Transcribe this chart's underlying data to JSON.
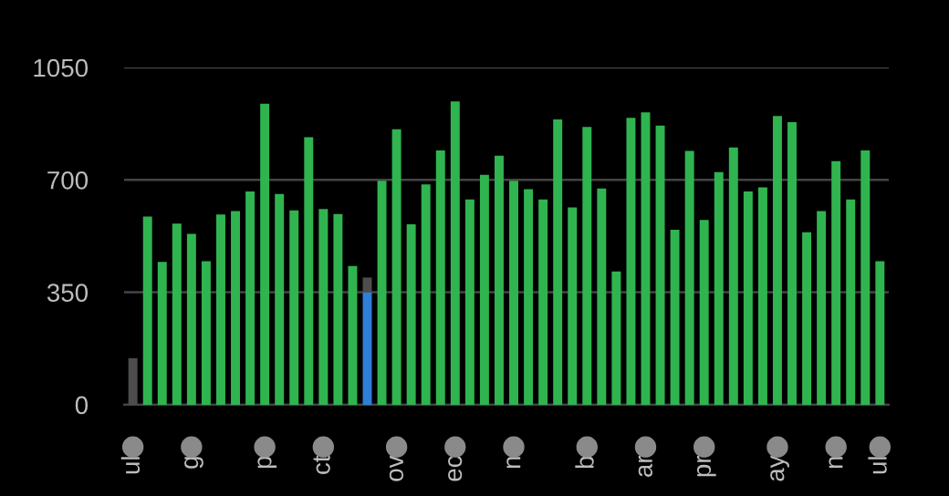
{
  "chart_data": {
    "type": "bar",
    "stacked": true,
    "categories": [
      "ul",
      null,
      null,
      null,
      "g",
      null,
      null,
      null,
      null,
      "p",
      null,
      null,
      null,
      "ct",
      null,
      null,
      null,
      null,
      "ov",
      null,
      null,
      null,
      "ec",
      null,
      null,
      null,
      "n",
      null,
      null,
      null,
      null,
      "b",
      null,
      null,
      null,
      "ar",
      null,
      null,
      null,
      "pr",
      null,
      null,
      null,
      null,
      "ay",
      null,
      null,
      null,
      "n",
      null,
      null,
      "ul"
    ],
    "series": [
      {
        "values": [
          null,
          586,
          445,
          564,
          532,
          447,
          592,
          603,
          664,
          937,
          656,
          605,
          833,
          609,
          594,
          432,
          350,
          697,
          858,
          562,
          686,
          792,
          944,
          639,
          716,
          775,
          697,
          671,
          639,
          888,
          614,
          865,
          673,
          415,
          893,
          910,
          869,
          545,
          790,
          575,
          724,
          801,
          664,
          677,
          899,
          880,
          537,
          603,
          758,
          639,
          792,
          447
        ],
        "colors": [
          "#30b450",
          "#30b450",
          "#30b450",
          "#30b450",
          "#30b450",
          "#30b450",
          "#30b450",
          "#30b450",
          "#30b450",
          "#30b450",
          "#30b450",
          "#30b450",
          "#30b450",
          "#30b450",
          "#30b450",
          "#30b450",
          "#2f7fd6",
          "#30b450",
          "#30b450",
          "#30b450",
          "#30b450",
          "#30b450",
          "#30b450",
          "#30b450",
          "#30b450",
          "#30b450",
          "#30b450",
          "#30b450",
          "#30b450",
          "#30b450",
          "#30b450",
          "#30b450",
          "#30b450",
          "#30b450",
          "#30b450",
          "#30b450",
          "#30b450",
          "#30b450",
          "#30b450",
          "#30b450",
          "#30b450",
          "#30b450",
          "#30b450",
          "#30b450",
          "#30b450",
          "#30b450",
          "#30b450",
          "#30b450",
          "#30b450",
          "#30b450",
          "#30b450",
          "#30b450"
        ]
      },
      {
        "color": "#4d4d4d",
        "values": [
          145,
          null,
          null,
          null,
          null,
          null,
          null,
          null,
          null,
          null,
          null,
          null,
          null,
          null,
          null,
          null,
          46,
          null,
          null,
          null,
          null,
          null,
          null,
          null,
          null,
          null,
          null,
          null,
          null,
          null,
          null,
          null,
          null,
          null,
          null,
          null,
          null,
          null,
          null,
          null,
          null,
          null,
          null,
          null,
          null,
          null,
          null,
          null,
          null,
          null,
          null,
          null
        ]
      }
    ],
    "ylim": [
      0,
      1050
    ],
    "yticks": [
      0,
      350,
      700,
      1050
    ],
    "grid": "y"
  }
}
